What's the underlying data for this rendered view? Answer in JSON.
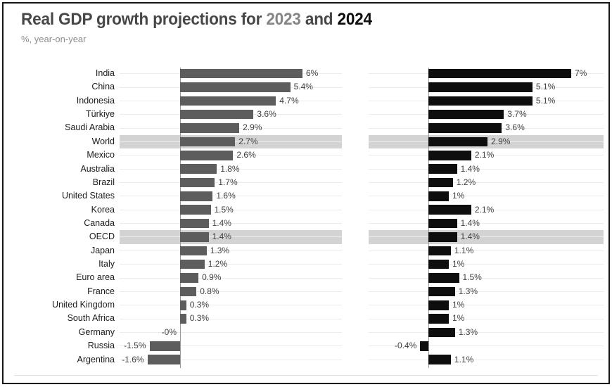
{
  "title": {
    "prefix": "Real GDP growth projections for ",
    "year1": "2023",
    "conjunction": " and ",
    "year2": "2024"
  },
  "subtitle": "%, year-on-year",
  "colors": {
    "title_prefix": "#474747",
    "title_year1": "#858585",
    "title_year2": "#0f0f0f",
    "bar_2023": "#5d5d5d",
    "bar_2024": "#0e0e0e",
    "highlight_band": "#d3d3d3",
    "zero_line": "#9a9a9a"
  },
  "chart_data": {
    "type": "bar",
    "orientation": "horizontal",
    "title": "Real GDP growth projections for 2023 and 2024",
    "subtitle": "%, year-on-year",
    "xlabel": "",
    "ylabel": "",
    "legend_position": "in-title",
    "grid": "row-guides",
    "axis_range_pct": [
      -3,
      8
    ],
    "categories": [
      "India",
      "China",
      "Indonesia",
      "Türkiye",
      "Saudi Arabia",
      "World",
      "Mexico",
      "Australia",
      "Brazil",
      "United States",
      "Korea",
      "Canada",
      "OECD",
      "Japan",
      "Italy",
      "Euro area",
      "France",
      "United Kingdom",
      "South Africa",
      "Germany",
      "Russia",
      "Argentina"
    ],
    "highlighted_categories": [
      "World",
      "OECD"
    ],
    "series": [
      {
        "name": "2023",
        "color": "#5d5d5d",
        "values": [
          6,
          5.4,
          4.7,
          3.6,
          2.9,
          2.7,
          2.6,
          1.8,
          1.7,
          1.6,
          1.5,
          1.4,
          1.4,
          1.3,
          1.2,
          0.9,
          0.8,
          0.3,
          0.3,
          0,
          -1.5,
          -1.6
        ],
        "value_labels": [
          "6%",
          "5.4%",
          "4.7%",
          "3.6%",
          "2.9%",
          "2.7%",
          "2.6%",
          "1.8%",
          "1.7%",
          "1.6%",
          "1.5%",
          "1.4%",
          "1.4%",
          "1.3%",
          "1.2%",
          "0.9%",
          "0.8%",
          "0.3%",
          "0.3%",
          "-0%",
          "-1.5%",
          "-1.6%"
        ]
      },
      {
        "name": "2024",
        "color": "#0e0e0e",
        "values": [
          7,
          5.1,
          5.1,
          3.7,
          3.6,
          2.9,
          2.1,
          1.4,
          1.2,
          1,
          2.1,
          1.4,
          1.4,
          1.1,
          1,
          1.5,
          1.3,
          1,
          1,
          1.3,
          -0.4,
          1.1
        ],
        "value_labels": [
          "7%",
          "5.1%",
          "5.1%",
          "3.7%",
          "3.6%",
          "2.9%",
          "2.1%",
          "1.4%",
          "1.2%",
          "1%",
          "2.1%",
          "1.4%",
          "1.4%",
          "1.1%",
          "1%",
          "1.5%",
          "1.3%",
          "1%",
          "1%",
          "1.3%",
          "-0.4%",
          "1.1%"
        ]
      }
    ]
  }
}
